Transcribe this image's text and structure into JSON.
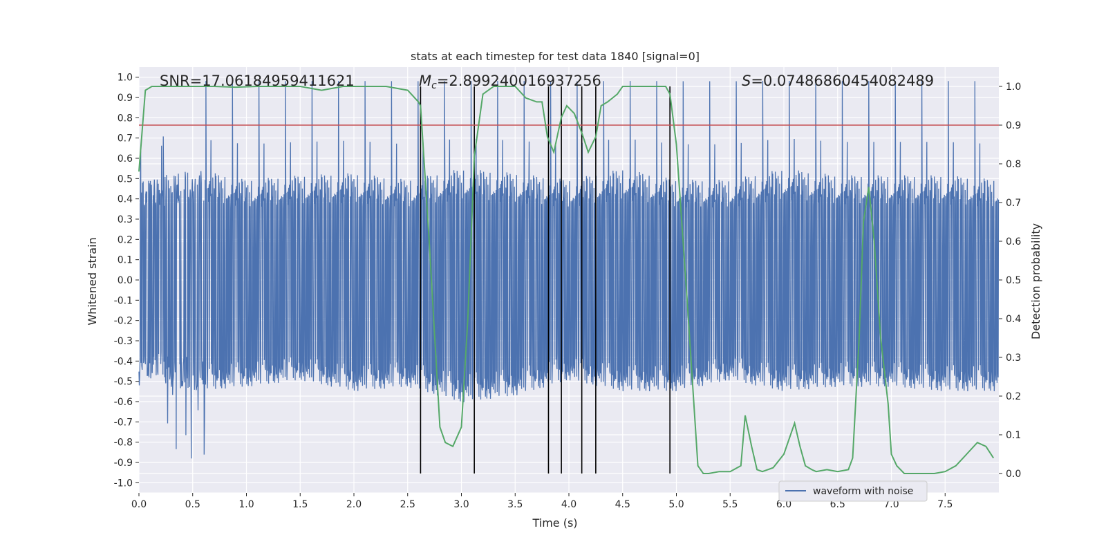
{
  "chart_data": {
    "type": "line",
    "title": "stats at each timestep for test data 1840 [signal=0]",
    "xlabel": "Time (s)",
    "ylabel": "Whitened strain",
    "ylabel_right": "Detection probability",
    "xlim": [
      0,
      8
    ],
    "ylim": [
      -1.05,
      1.05
    ],
    "ylim_right": [
      -0.05,
      1.05
    ],
    "x_ticks": [
      0,
      0.5,
      1,
      1.5,
      2,
      2.5,
      3,
      3.5,
      4,
      4.5,
      5,
      5.5,
      6,
      6.5,
      7,
      7.5
    ],
    "x_tick_labels": [
      "0.0",
      "0.5",
      "1.0",
      "1.5",
      "2.0",
      "2.5",
      "3.0",
      "3.5",
      "4.0",
      "4.5",
      "5.0",
      "5.5",
      "6.0",
      "6.5",
      "7.0",
      "7.5"
    ],
    "y_ticks": [
      -1.0,
      -0.9,
      -0.8,
      -0.7,
      -0.6,
      -0.5,
      -0.4,
      -0.3,
      -0.2,
      -0.1,
      0.0,
      0.1,
      0.2,
      0.3,
      0.4,
      0.5,
      0.6,
      0.7,
      0.8,
      0.9,
      1.0
    ],
    "y_tick_labels": [
      "-1.0",
      "-0.9",
      "-0.8",
      "-0.7",
      "-0.6",
      "-0.5",
      "-0.4",
      "-0.3",
      "-0.2",
      "-0.1",
      "0.0",
      "0.1",
      "0.2",
      "0.3",
      "0.4",
      "0.5",
      "0.6",
      "0.7",
      "0.8",
      "0.9",
      "1.0"
    ],
    "y_right_ticks": [
      0.0,
      0.1,
      0.2,
      0.3,
      0.4,
      0.5,
      0.6,
      0.7,
      0.8,
      0.9,
      1.0
    ],
    "y_right_tick_labels": [
      "0.0",
      "0.1",
      "0.2",
      "0.3",
      "0.4",
      "0.5",
      "0.6",
      "0.7",
      "0.8",
      "0.9",
      "1.0"
    ],
    "grid": true,
    "legend": {
      "position": "bottom-right",
      "entries": [
        "waveform with noise"
      ]
    },
    "annotations": {
      "snr": "SNR=17.06184959411621",
      "mc_symbol": "M",
      "mc_sub": "c",
      "mc_value": "=2.899240016937256",
      "s_symbol": "S",
      "s_value": "=0.07486860454082489"
    },
    "threshold_right": 0.9,
    "vertical_lines_x": [
      2.62,
      3.12,
      3.81,
      3.93,
      4.12,
      4.25,
      4.94
    ],
    "series": [
      {
        "name": "waveform with noise",
        "kind": "noise",
        "color": "#4c72b0",
        "envelope_x": [
          0,
          0.5,
          1.0,
          1.5,
          2.0,
          2.5,
          3.0,
          3.5,
          4.0,
          4.5,
          5.0,
          5.5,
          6.0,
          6.5,
          7.0,
          7.5,
          8.0
        ],
        "typical_upper": [
          0.45,
          0.5,
          0.45,
          0.47,
          0.48,
          0.45,
          0.5,
          0.48,
          0.45,
          0.5,
          0.45,
          0.45,
          0.5,
          0.47,
          0.47,
          0.47,
          0.45
        ],
        "typical_lower": [
          -0.45,
          -0.5,
          -0.48,
          -0.45,
          -0.5,
          -0.48,
          -0.55,
          -0.52,
          -0.45,
          -0.5,
          -0.5,
          -0.45,
          -0.5,
          -0.48,
          -0.48,
          -0.5,
          -0.5
        ],
        "peak_max": 1.0,
        "peak_min": -0.92
      },
      {
        "name": "detection probability",
        "axis": "right",
        "color": "#55a868",
        "x": [
          0.0,
          0.06,
          0.12,
          0.3,
          0.5,
          0.7,
          0.9,
          1.1,
          1.3,
          1.5,
          1.7,
          1.9,
          2.1,
          2.3,
          2.5,
          2.6,
          2.62,
          2.7,
          2.8,
          2.85,
          2.92,
          3.0,
          3.06,
          3.12,
          3.2,
          3.3,
          3.4,
          3.5,
          3.6,
          3.7,
          3.75,
          3.8,
          3.86,
          3.93,
          3.98,
          4.05,
          4.12,
          4.18,
          4.25,
          4.3,
          4.36,
          4.45,
          4.5,
          4.6,
          4.7,
          4.8,
          4.9,
          4.94,
          5.0,
          5.1,
          5.2,
          5.25,
          5.3,
          5.4,
          5.5,
          5.6,
          5.64,
          5.7,
          5.75,
          5.8,
          5.85,
          5.9,
          6.0,
          6.1,
          6.15,
          6.2,
          6.26,
          6.3,
          6.4,
          6.5,
          6.6,
          6.64,
          6.7,
          6.74,
          6.79,
          6.84,
          6.9,
          6.97,
          7.0,
          7.05,
          7.12,
          7.2,
          7.4,
          7.5,
          7.6,
          7.7,
          7.8,
          7.88,
          7.95
        ],
        "values": [
          0.78,
          0.99,
          1.0,
          1.0,
          1.0,
          1.0,
          0.998,
          1.0,
          1.0,
          1.0,
          0.99,
          1.0,
          1.0,
          1.0,
          0.99,
          0.96,
          0.95,
          0.6,
          0.12,
          0.08,
          0.07,
          0.12,
          0.4,
          0.82,
          0.98,
          1.0,
          1.0,
          1.0,
          0.97,
          0.96,
          0.96,
          0.87,
          0.83,
          0.92,
          0.95,
          0.93,
          0.88,
          0.83,
          0.87,
          0.95,
          0.96,
          0.98,
          1.0,
          1.0,
          1.0,
          1.0,
          1.0,
          0.98,
          0.85,
          0.45,
          0.02,
          0.0,
          0.0,
          0.005,
          0.005,
          0.02,
          0.15,
          0.07,
          0.01,
          0.005,
          0.01,
          0.015,
          0.05,
          0.13,
          0.07,
          0.02,
          0.01,
          0.005,
          0.01,
          0.005,
          0.01,
          0.04,
          0.35,
          0.65,
          0.74,
          0.6,
          0.35,
          0.18,
          0.05,
          0.02,
          0.0,
          0.0,
          0.0,
          0.005,
          0.02,
          0.05,
          0.08,
          0.07,
          0.04
        ]
      }
    ]
  }
}
